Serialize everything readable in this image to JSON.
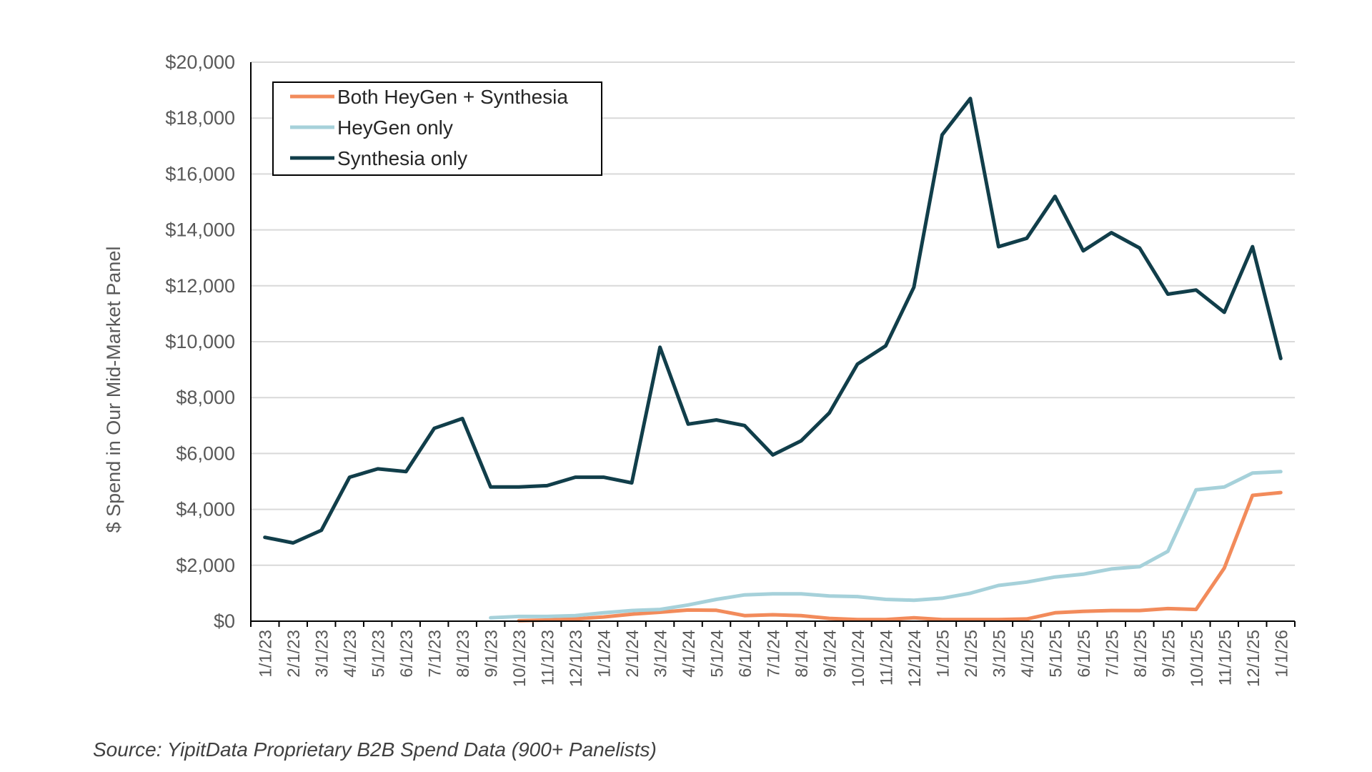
{
  "chart_data": {
    "type": "line",
    "title": "",
    "xlabel": "",
    "ylabel": "$ Spend in Our Mid-Market Panel",
    "ylim": [
      0,
      20000
    ],
    "y_ticks": [
      0,
      2000,
      4000,
      6000,
      8000,
      10000,
      12000,
      14000,
      16000,
      18000,
      20000
    ],
    "y_tick_labels": [
      "$0",
      "$2,000",
      "$4,000",
      "$6,000",
      "$8,000",
      "$10,000",
      "$12,000",
      "$14,000",
      "$16,000",
      "$18,000",
      "$20,000"
    ],
    "grid": true,
    "legend_position": "top-left",
    "categories": [
      "1/1/23",
      "2/1/23",
      "3/1/23",
      "4/1/23",
      "5/1/23",
      "6/1/23",
      "7/1/23",
      "8/1/23",
      "9/1/23",
      "10/1/23",
      "11/1/23",
      "12/1/23",
      "1/1/24",
      "2/1/24",
      "3/1/24",
      "4/1/24",
      "5/1/24",
      "6/1/24",
      "7/1/24",
      "8/1/24",
      "9/1/24",
      "10/1/24",
      "11/1/24",
      "12/1/24",
      "1/1/25",
      "2/1/25",
      "3/1/25",
      "4/1/25",
      "5/1/25",
      "6/1/25",
      "7/1/25",
      "8/1/25",
      "9/1/25",
      "10/1/25",
      "11/1/25",
      "12/1/25",
      "1/1/26"
    ],
    "series": [
      {
        "name": "Both HeyGen + Synthesia",
        "color": "#F28B5B",
        "values": [
          null,
          null,
          null,
          null,
          null,
          null,
          null,
          null,
          null,
          20,
          40,
          80,
          150,
          250,
          320,
          400,
          390,
          200,
          230,
          200,
          100,
          60,
          60,
          120,
          60,
          60,
          60,
          80,
          300,
          350,
          380,
          380,
          450,
          420,
          1900,
          4500,
          4600
        ]
      },
      {
        "name": "HeyGen only",
        "color": "#A6D1DA",
        "values": [
          null,
          null,
          null,
          null,
          null,
          null,
          null,
          null,
          120,
          170,
          170,
          200,
          300,
          380,
          420,
          580,
          780,
          940,
          980,
          980,
          900,
          880,
          780,
          750,
          820,
          1000,
          1280,
          1400,
          1580,
          1680,
          1870,
          1950,
          2500,
          4700,
          4800,
          5300,
          5350
        ]
      },
      {
        "name": "Synthesia only",
        "color": "#113E4A",
        "values": [
          3000,
          2800,
          3250,
          5150,
          5450,
          5350,
          6900,
          7250,
          4800,
          4800,
          4850,
          5150,
          5150,
          4950,
          9800,
          7050,
          7200,
          7000,
          5950,
          6450,
          7450,
          9200,
          9850,
          11950,
          17400,
          18700,
          13400,
          13700,
          15200,
          13250,
          13900,
          13350,
          11700,
          11850,
          11050,
          13400,
          9400
        ]
      }
    ]
  },
  "source_text": "Source: YipitData Proprietary B2B Spend Data (900+ Panelists)"
}
